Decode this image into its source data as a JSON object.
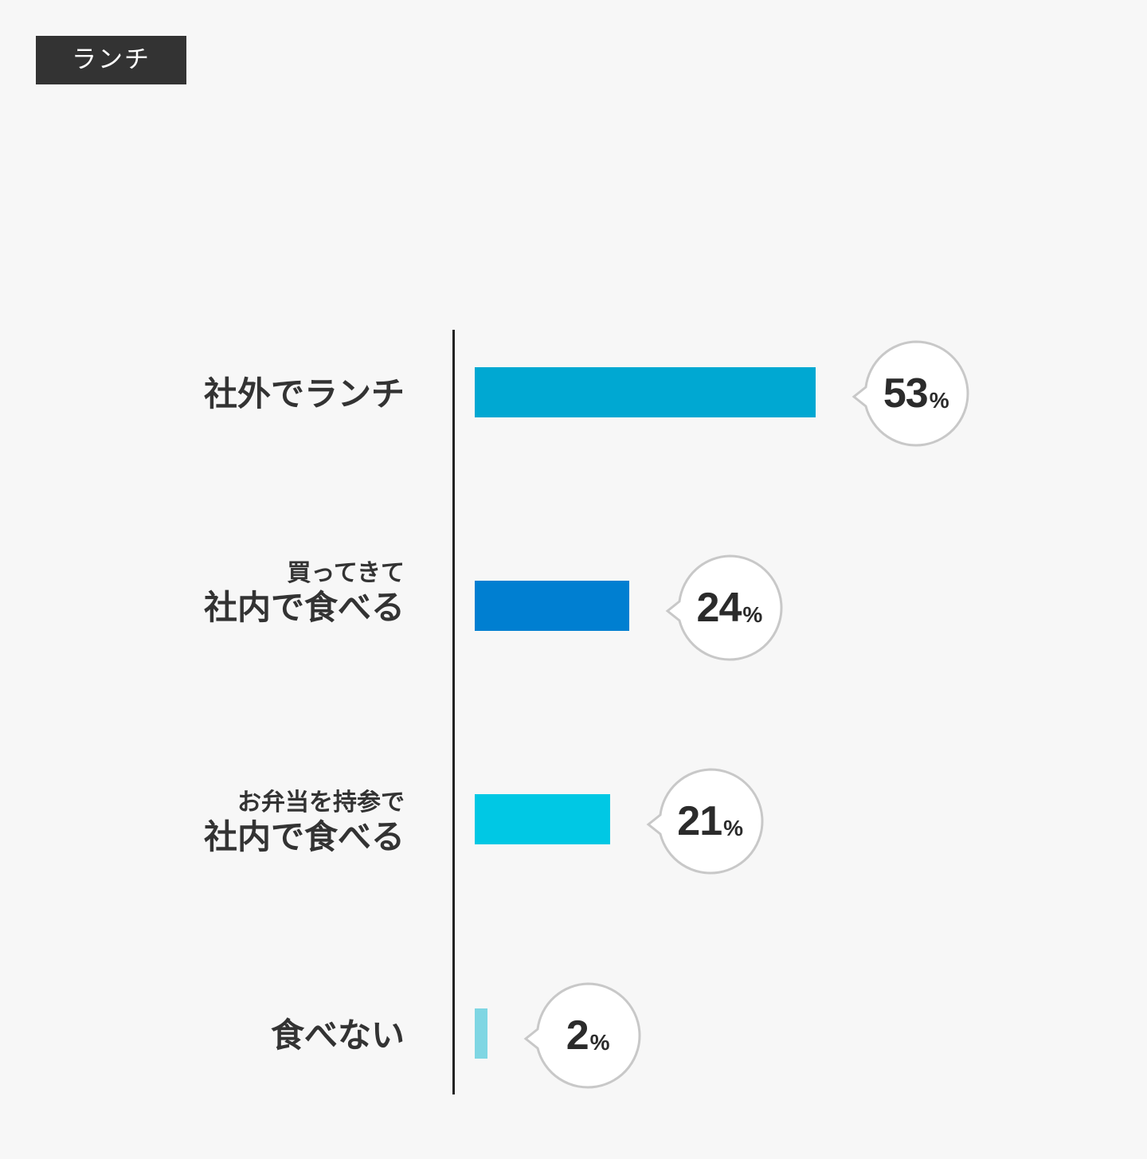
{
  "tag_label": "ランチ",
  "chart_data": {
    "type": "bar",
    "orientation": "horizontal",
    "unit": "%",
    "categories": [
      {
        "sub": "",
        "main": "社外でランチ"
      },
      {
        "sub": "買ってきて",
        "main": "社内で食べる"
      },
      {
        "sub": "お弁当を持参で",
        "main": "社内で食べる"
      },
      {
        "sub": "",
        "main": "食べない"
      }
    ],
    "values": [
      53,
      24,
      21,
      2
    ],
    "value_labels": [
      "53",
      "24",
      "21",
      "2"
    ],
    "colors": [
      "#00a8d2",
      "#007fd1",
      "#00c8e4",
      "#7fd6e3"
    ],
    "xlim": [
      0,
      100
    ],
    "grid": false,
    "legend": "none"
  }
}
